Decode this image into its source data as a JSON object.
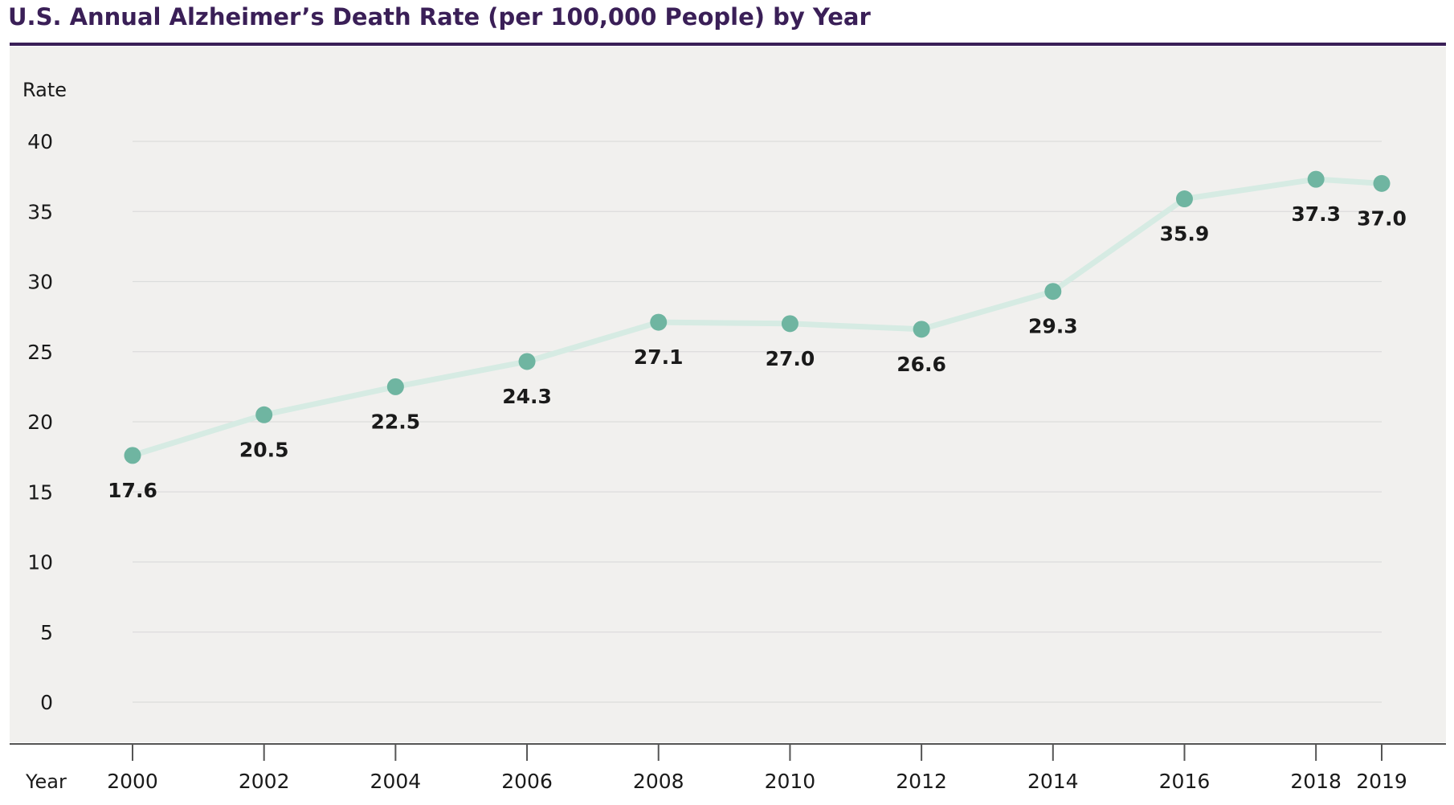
{
  "title": "U.S. Annual Alzheimer’s Death Rate (per 100,000 People) by Year",
  "colors": {
    "title": "#3a1f57",
    "plot_background": "#f1f0ee",
    "gridline": "#dcdcdc",
    "line": "#d6ebe3",
    "marker": "#6fb5a1",
    "text": "#1a1a1a"
  },
  "chart_data": {
    "type": "line",
    "title": "U.S. Annual Alzheimer’s Death Rate (per 100,000 People) by Year",
    "xlabel": "Year",
    "ylabel": "Rate",
    "x": [
      2000,
      2002,
      2004,
      2006,
      2008,
      2010,
      2012,
      2014,
      2016,
      2018,
      2019
    ],
    "values": [
      17.6,
      20.5,
      22.5,
      24.3,
      27.1,
      27.0,
      26.6,
      29.3,
      35.9,
      37.3,
      37.0
    ],
    "value_labels": [
      "17.6",
      "20.5",
      "22.5",
      "24.3",
      "27.1",
      "27.0",
      "26.6",
      "29.3",
      "35.9",
      "37.3",
      "37.0"
    ],
    "x_tick_labels": [
      "2000",
      "2002",
      "2004",
      "2006",
      "2008",
      "2010",
      "2012",
      "2014",
      "2016",
      "2018",
      "2019"
    ],
    "y_ticks": [
      0,
      5,
      10,
      15,
      20,
      25,
      30,
      35,
      40
    ],
    "y_tick_labels": [
      "0",
      "5",
      "10",
      "15",
      "20",
      "25",
      "30",
      "35",
      "40"
    ],
    "xlim": [
      2000,
      2019
    ],
    "ylim": [
      0,
      40
    ],
    "grid": true,
    "legend": "none"
  }
}
